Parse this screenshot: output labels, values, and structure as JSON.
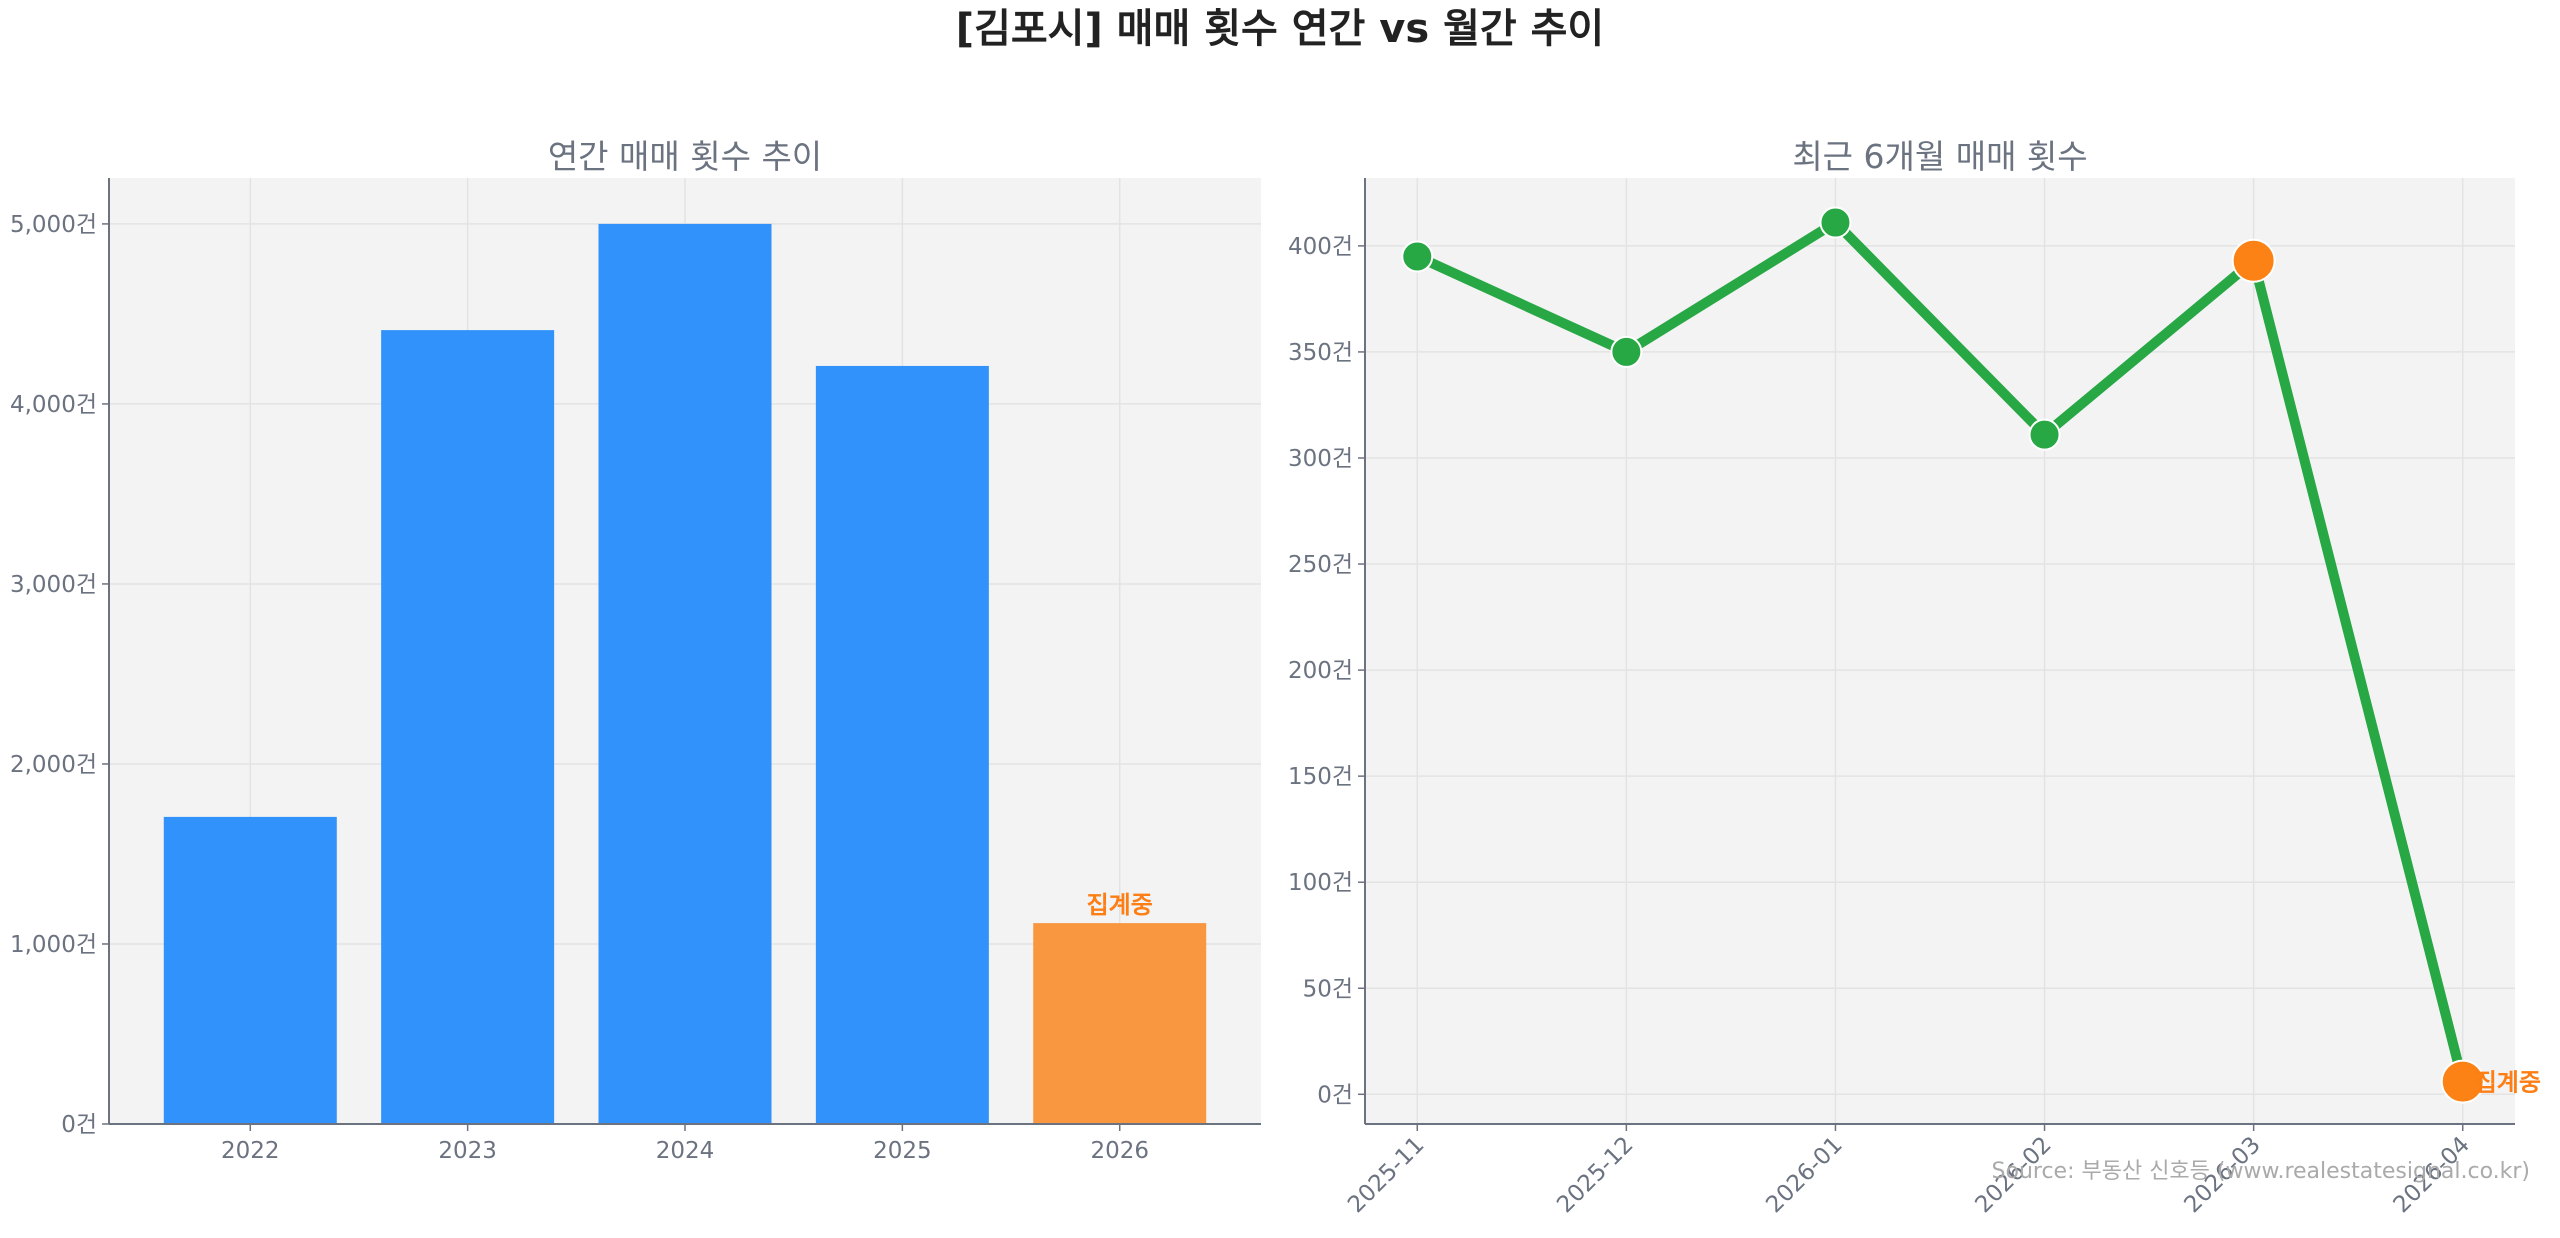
{
  "title": "[김포시] 매매 횟수 연간 vs 월간 추이",
  "source": "Source: 부동산 신호등 (www.realestatesignal.co.kr)",
  "colors": {
    "bar": "#3092fa",
    "bar_partial": "#f99740",
    "line": "#28a745",
    "partial_marker": "#fd8216",
    "label": "#fd7e14",
    "axis_text": "#6b7280",
    "plot_bg": "#f3f3f3"
  },
  "chart_data": [
    {
      "type": "bar",
      "title": "연간 매매 횟수 추이",
      "categories": [
        "2022",
        "2023",
        "2024",
        "2025",
        "2026"
      ],
      "values": [
        1706,
        4410,
        5000,
        4211,
        1116
      ],
      "partial_index": 4,
      "annotation": "집계중",
      "yticks": [
        0,
        1000,
        2000,
        3000,
        4000,
        5000
      ],
      "ytick_labels": [
        "0건",
        "1,000건",
        "2,000건",
        "3,000건",
        "4,000건",
        "5,000건"
      ],
      "ylim": [
        0,
        5255
      ],
      "grid": true
    },
    {
      "type": "line",
      "title": "최근 6개월 매매 횟수",
      "categories": [
        "2025-11",
        "2025-12",
        "2026-01",
        "2026-02",
        "2026-03",
        "2026-04"
      ],
      "values": [
        395,
        350,
        411,
        311,
        393,
        6
      ],
      "partial_indices": [
        4,
        5
      ],
      "annotation": "집계중",
      "yticks": [
        0,
        50,
        100,
        150,
        200,
        250,
        300,
        350,
        400
      ],
      "ytick_labels": [
        "0건",
        "50건",
        "100건",
        "150건",
        "200건",
        "250건",
        "300건",
        "350건",
        "400건"
      ],
      "ylim": [
        -14,
        432
      ],
      "grid": true
    }
  ]
}
